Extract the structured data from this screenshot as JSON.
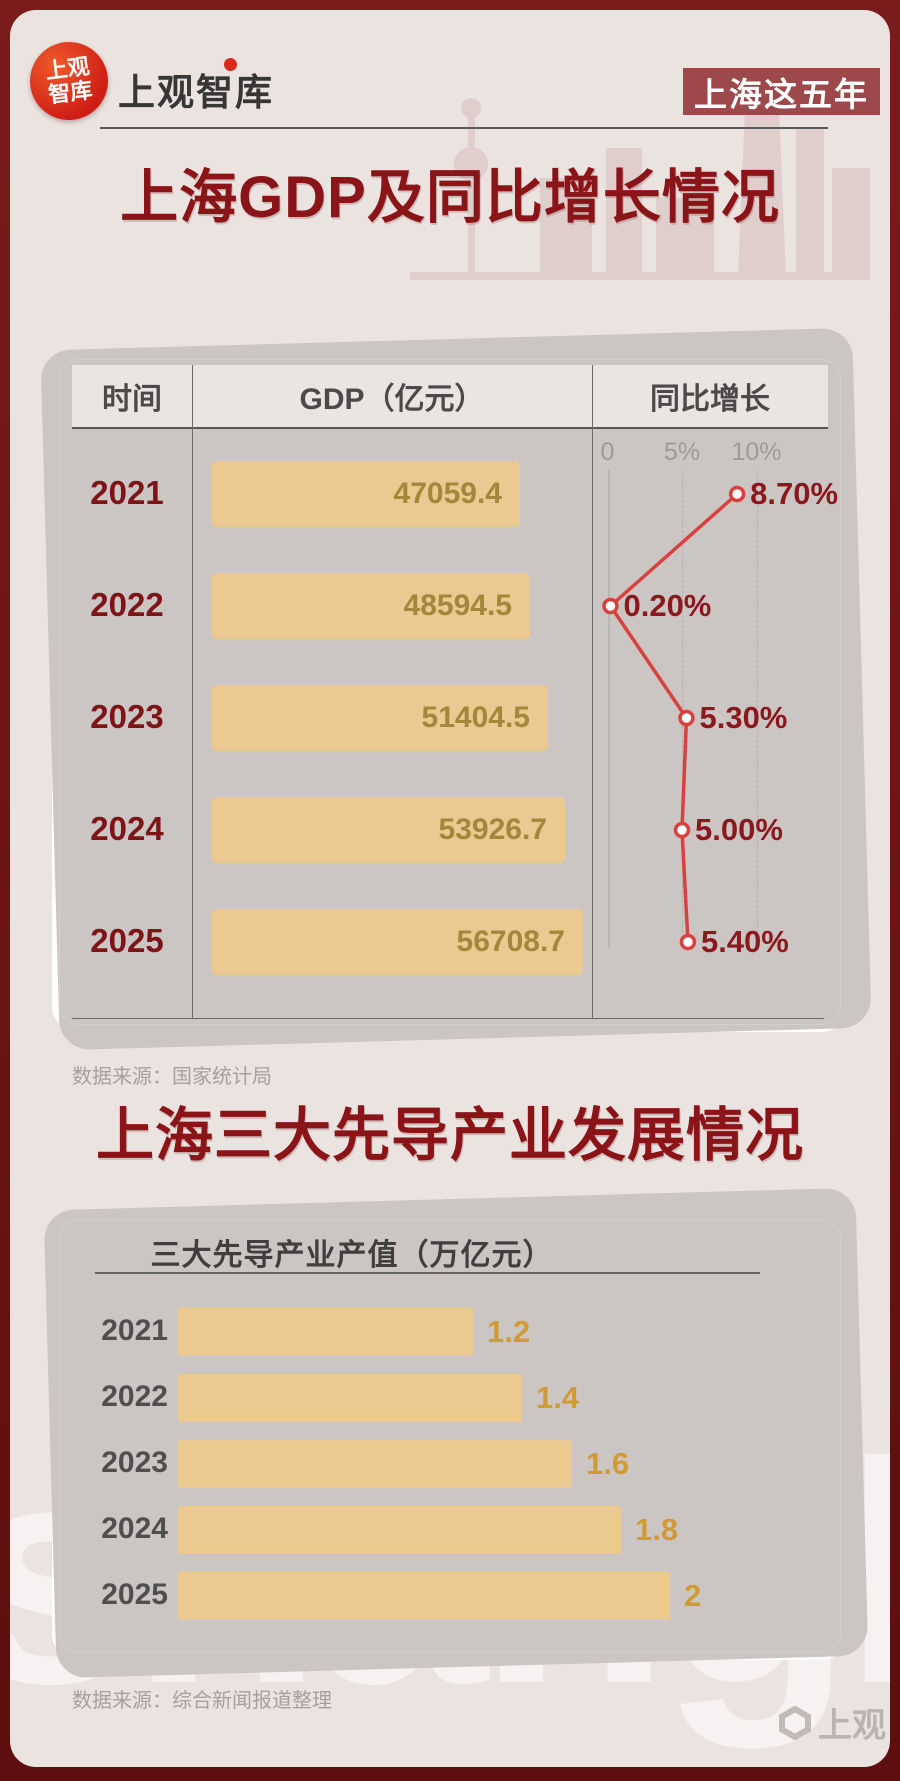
{
  "header": {
    "logo_badge_line1": "上观",
    "logo_badge_line2": "智库",
    "logo_text": "上观智库",
    "corner_badge": "上海这五年"
  },
  "section1": {
    "title": "上海GDP及同比增长情况",
    "source": "数据来源：国家统计局"
  },
  "section2": {
    "title": "上海三大先导产业发展情况",
    "source": "数据来源：综合新闻报道整理"
  },
  "watermark": {
    "text": "shanghai",
    "corner_logo": "上观"
  },
  "colors": {
    "frame": "#6b1413",
    "page_bg": "#eae3e0",
    "accent_dark_red": "#8a1418",
    "badge_bg": "#9d494c",
    "bar_fill": "#ebc990",
    "bar_value_text": "#a5863a",
    "line_red": "#d8413d",
    "line_label_red": "#8c181d",
    "chart2_value_text": "#d09b33"
  },
  "chart_data": [
    {
      "type": "table",
      "title": "上海GDP及同比增长情况",
      "columns": [
        "时间",
        "GDP（亿元）",
        "同比增长"
      ],
      "categories": [
        "2021",
        "2022",
        "2023",
        "2024",
        "2025"
      ],
      "series": [
        {
          "name": "GDP（亿元）",
          "type": "bar",
          "values": [
            47059.4,
            48594.5,
            51404.5,
            53926.7,
            56708.7
          ]
        },
        {
          "name": "同比增长",
          "type": "line",
          "values": [
            8.7,
            0.2,
            5.3,
            5.0,
            5.4
          ],
          "labels": [
            "8.70%",
            "0.20%",
            "5.30%",
            "5.00%",
            "5.40%"
          ]
        }
      ],
      "line_axis": {
        "ticks": [
          "0",
          "5%",
          "10%"
        ],
        "tick_values": [
          0,
          5,
          10
        ],
        "max": 10
      },
      "legend_position": "table-header",
      "grid": "dashed-vertical"
    },
    {
      "type": "bar",
      "title": "三大先导产业产值（万亿元）",
      "categories": [
        "2021",
        "2022",
        "2023",
        "2024",
        "2025"
      ],
      "values": [
        1.2,
        1.4,
        1.6,
        1.8,
        2
      ],
      "value_labels": [
        "1.2",
        "1.4",
        "1.6",
        "1.8",
        "2"
      ],
      "xlim": [
        0,
        2
      ],
      "orientation": "horizontal"
    }
  ]
}
